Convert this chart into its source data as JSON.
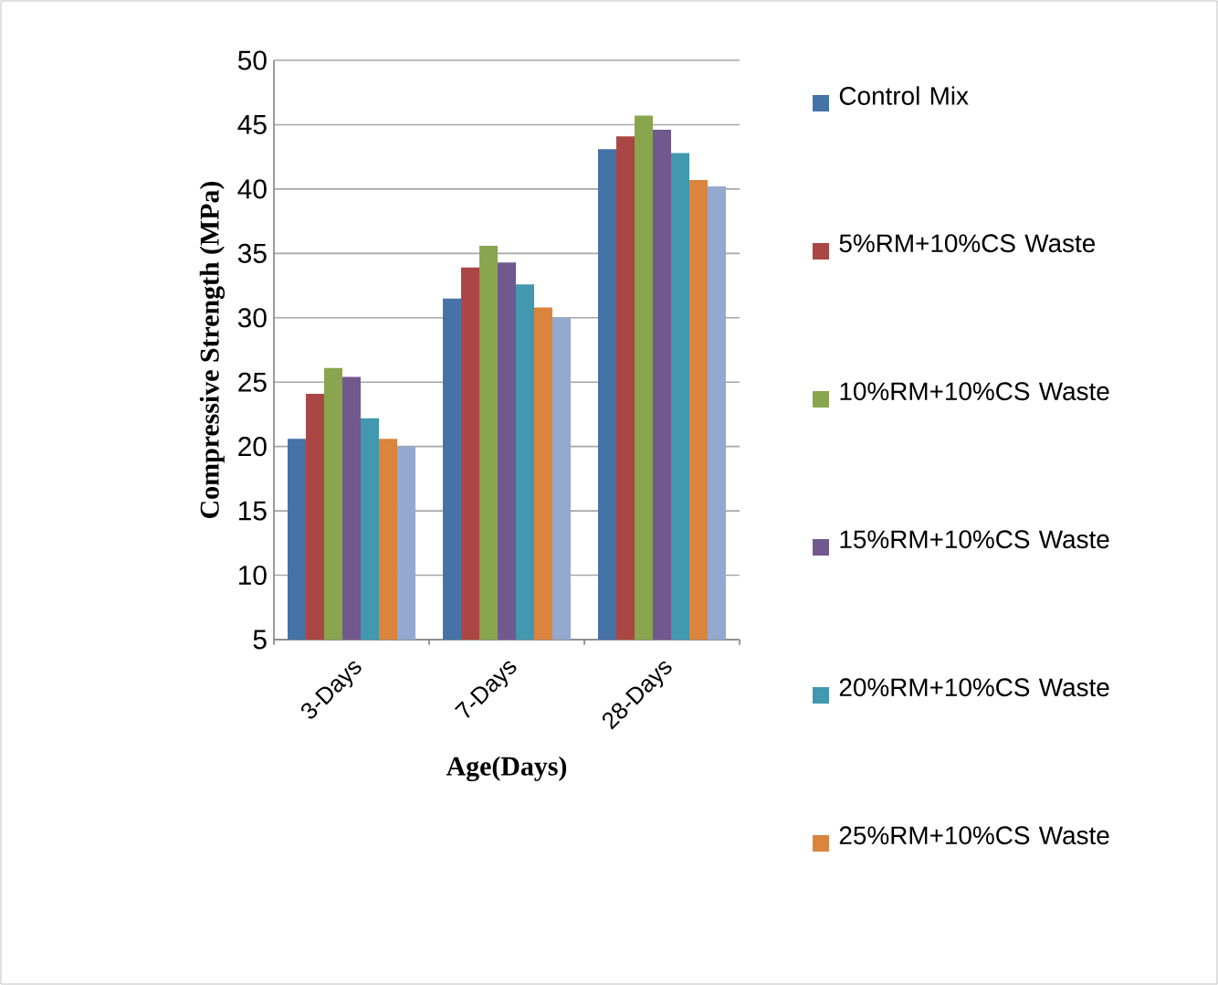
{
  "chart_data": {
    "type": "bar",
    "xlabel": "Age(Days)",
    "ylabel": "Compressive Strength (MPa)",
    "categories": [
      "3-Days",
      "7-Days",
      "28-Days"
    ],
    "series": [
      {
        "name": "Control Mix",
        "color": "#4572a7",
        "values": [
          20.6,
          31.5,
          43.1
        ]
      },
      {
        "name": "5%RM+10%CS Waste",
        "color": "#aa4643",
        "values": [
          24.1,
          33.9,
          44.1
        ]
      },
      {
        "name": "10%RM+10%CS Waste",
        "color": "#89a54e",
        "values": [
          26.1,
          35.6,
          45.7
        ]
      },
      {
        "name": "15%RM+10%CS Waste",
        "color": "#71588f",
        "values": [
          25.4,
          34.3,
          44.6
        ]
      },
      {
        "name": "20%RM+10%CS Waste",
        "color": "#4198af",
        "values": [
          22.2,
          32.6,
          42.8
        ]
      },
      {
        "name": "25%RM+10%CS Waste",
        "color": "#db843d",
        "values": [
          20.6,
          30.8,
          40.7
        ]
      },
      {
        "color": "#93a9cf",
        "values": [
          20.0,
          30.0,
          40.2
        ]
      }
    ],
    "ylim": [
      5,
      50
    ],
    "yticks": [
      5,
      10,
      15,
      20,
      25,
      30,
      35,
      40,
      45,
      50
    ],
    "grid": "y",
    "legend": "right"
  }
}
